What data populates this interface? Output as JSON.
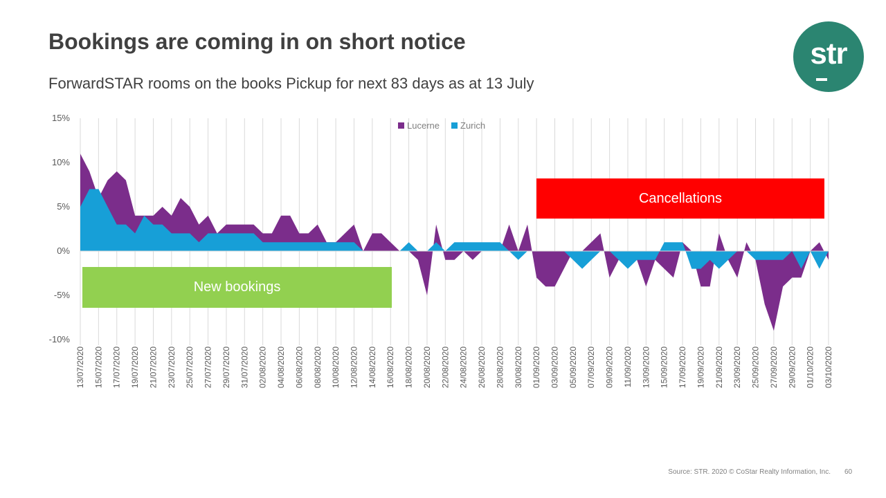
{
  "header": {
    "title": "Bookings are coming in on short notice",
    "subtitle": "ForwardSTAR rooms on the books Pickup for next 83 days as at 13 July",
    "logo_text": "str"
  },
  "annotations": {
    "new_bookings": "New bookings",
    "cancellations": "Cancellations"
  },
  "footer": {
    "source": "Source: STR. 2020 © CoStar Realty Information, Inc.",
    "page_number": "60"
  },
  "colors": {
    "lucerne": "#7b2d8b",
    "zurich": "#179fd7",
    "new_bookings": "#92d050",
    "cancellations": "#ff0000",
    "brand": "#2b8571"
  },
  "chart_data": {
    "type": "area",
    "title": "",
    "xlabel": "",
    "ylabel": "",
    "ylim": [
      -10,
      15
    ],
    "yticks": [
      15,
      10,
      5,
      0,
      -5,
      -10
    ],
    "ytick_labels": [
      "15%",
      "10%",
      "5%",
      "0%",
      "-5%",
      "-10%"
    ],
    "legend_position": "top-center",
    "grid": "vertical",
    "categories": [
      "13/07/2020",
      "14/07/2020",
      "15/07/2020",
      "16/07/2020",
      "17/07/2020",
      "18/07/2020",
      "19/07/2020",
      "20/07/2020",
      "21/07/2020",
      "22/07/2020",
      "23/07/2020",
      "24/07/2020",
      "25/07/2020",
      "26/07/2020",
      "27/07/2020",
      "28/07/2020",
      "29/07/2020",
      "30/07/2020",
      "31/07/2020",
      "01/08/2020",
      "02/08/2020",
      "03/08/2020",
      "04/08/2020",
      "05/08/2020",
      "06/08/2020",
      "07/08/2020",
      "08/08/2020",
      "09/08/2020",
      "10/08/2020",
      "11/08/2020",
      "12/08/2020",
      "13/08/2020",
      "14/08/2020",
      "15/08/2020",
      "16/08/2020",
      "17/08/2020",
      "18/08/2020",
      "19/08/2020",
      "20/08/2020",
      "21/08/2020",
      "22/08/2020",
      "23/08/2020",
      "24/08/2020",
      "25/08/2020",
      "26/08/2020",
      "27/08/2020",
      "28/08/2020",
      "29/08/2020",
      "30/08/2020",
      "31/08/2020",
      "01/09/2020",
      "02/09/2020",
      "03/09/2020",
      "04/09/2020",
      "05/09/2020",
      "06/09/2020",
      "07/09/2020",
      "08/09/2020",
      "09/09/2020",
      "10/09/2020",
      "11/09/2020",
      "12/09/2020",
      "13/09/2020",
      "14/09/2020",
      "15/09/2020",
      "16/09/2020",
      "17/09/2020",
      "18/09/2020",
      "19/09/2020",
      "20/09/2020",
      "21/09/2020",
      "22/09/2020",
      "23/09/2020",
      "24/09/2020",
      "25/09/2020",
      "26/09/2020",
      "27/09/2020",
      "28/09/2020",
      "29/09/2020",
      "30/09/2020",
      "01/10/2020",
      "02/10/2020",
      "03/10/2020"
    ],
    "series": [
      {
        "name": "Lucerne",
        "values": [
          11,
          9,
          6,
          8,
          9,
          8,
          4,
          4,
          4,
          5,
          4,
          6,
          5,
          3,
          4,
          2,
          3,
          3,
          3,
          3,
          2,
          2,
          4,
          4,
          2,
          2,
          3,
          1,
          1,
          2,
          3,
          0,
          2,
          2,
          1,
          0,
          0,
          -1,
          -5,
          3,
          -1,
          -1,
          0,
          -1,
          0,
          0,
          0,
          3,
          0,
          3,
          -3,
          -4,
          -4,
          -2,
          0,
          0,
          1,
          2,
          -3,
          -1,
          -1,
          -1,
          -4,
          -1,
          -2,
          -3,
          1,
          0,
          -4,
          -4,
          2,
          -1,
          -3,
          1,
          -1,
          -6,
          -9,
          -4,
          -3,
          -3,
          0,
          1,
          -1
        ]
      },
      {
        "name": "Zurich",
        "values": [
          5,
          7,
          7,
          5,
          3,
          3,
          2,
          4,
          3,
          3,
          2,
          2,
          2,
          1,
          2,
          2,
          2,
          2,
          2,
          2,
          1,
          1,
          1,
          1,
          1,
          1,
          1,
          1,
          1,
          1,
          1,
          0,
          0,
          0,
          0,
          0,
          1,
          0,
          0,
          1,
          0,
          1,
          1,
          1,
          1,
          1,
          1,
          0,
          -1,
          0,
          0,
          0,
          0,
          0,
          -1,
          -2,
          -1,
          0,
          0,
          -1,
          -2,
          -1,
          -1,
          -1,
          1,
          1,
          1,
          -2,
          -2,
          -1,
          -2,
          -1,
          0,
          0,
          -1,
          -1,
          -1,
          -1,
          0,
          -2,
          0,
          -2,
          0
        ]
      }
    ]
  }
}
